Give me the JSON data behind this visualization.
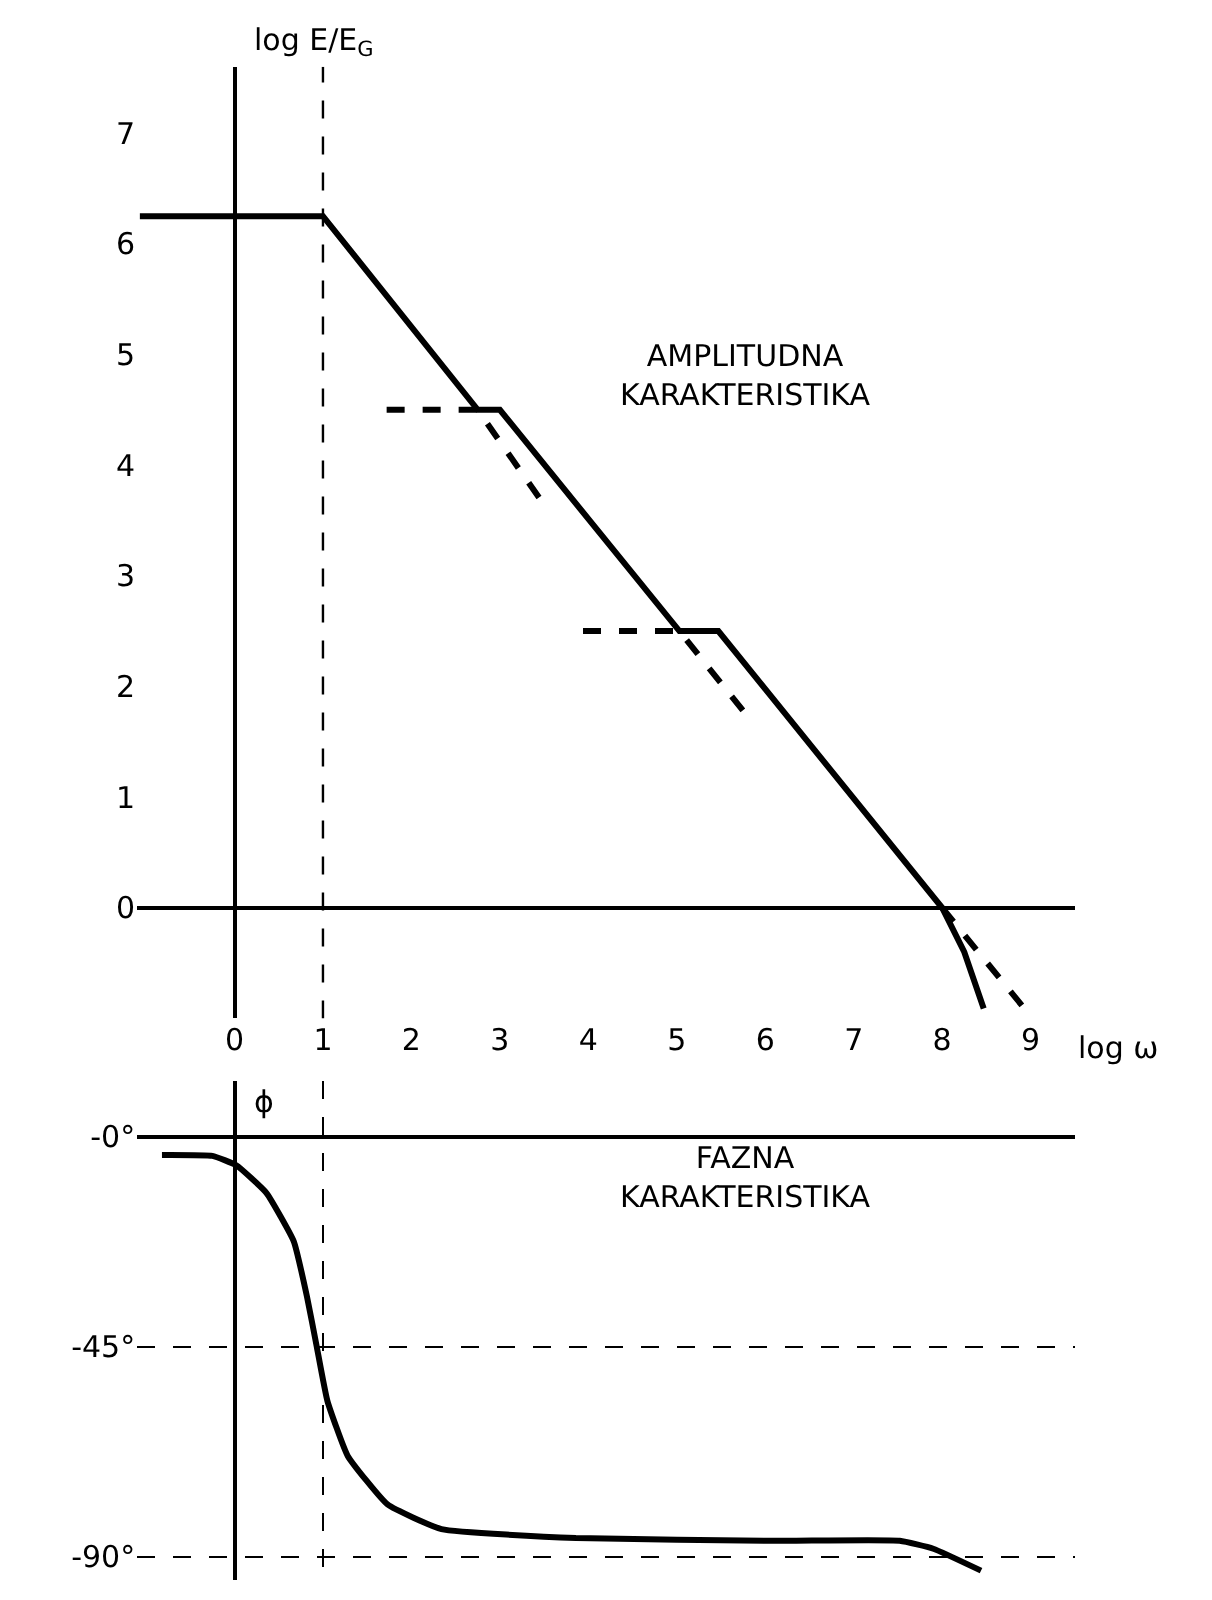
{
  "chart_data": [
    {
      "type": "line",
      "xlabel": "log ω",
      "ylabel": "log E/E$_{G}$",
      "xlim": [
        -1.1,
        9.5
      ],
      "ylim": [
        -1,
        7.6
      ],
      "xticks": [
        0,
        1,
        2,
        3,
        4,
        5,
        6,
        7,
        8,
        9
      ],
      "yticks": [
        0,
        1,
        2,
        3,
        4,
        5,
        6,
        7
      ],
      "marker": "none",
      "series": [
        {
          "color": "#000000",
          "line_style": "solid",
          "x": [
            -1.07,
            1,
            2.75,
            3,
            5.03,
            5.47,
            8,
            8.25,
            8.47
          ],
          "values": [
            6.25,
            6.25,
            4.5,
            4.5,
            2.5,
            2.5,
            0,
            -0.4,
            -0.91
          ]
        },
        {
          "color": "#000000",
          "line_style": "dashed",
          "x": [
            1.72,
            2.75,
            3.45
          ],
          "values": [
            4.5,
            4.5,
            3.7
          ]
        },
        {
          "color": "#000000",
          "line_style": "dashed",
          "x": [
            3.94,
            5.03,
            5.78
          ],
          "values": [
            2.5,
            2.5,
            1.75
          ]
        },
        {
          "color": "#000000",
          "line_style": "dashed",
          "x": [
            8,
            8.93
          ],
          "values": [
            0,
            -0.91
          ]
        }
      ],
      "ref_lines": [
        {
          "axis": "x",
          "value": 1,
          "label": null,
          "line_style": "dashed",
          "color": "#000000"
        }
      ],
      "annotations": [
        "AMPLITUDNA\nKARAKTERISTIKA"
      ]
    },
    {
      "type": "line",
      "ylabel": "ϕ",
      "xlim": [
        -1.1,
        9.5
      ],
      "ylim": [
        -95,
        12
      ],
      "xticks": [
        {
          "value": 1,
          "label": null
        }
      ],
      "yticks": [
        {
          "value": 0,
          "label": "-0°"
        },
        {
          "value": -45,
          "label": "-45°"
        },
        {
          "value": -90,
          "label": "-90°"
        }
      ],
      "tick_labels": "y",
      "marker": "none",
      "series": [
        {
          "color": "#000000",
          "line_style": "solid",
          "x": [
            -0.82,
            -0.25,
            0.02,
            0.36,
            0.67,
            0.82,
            0.93,
            1.05,
            1.28,
            1.73,
            2.34,
            3.86,
            6.15,
            7.52,
            7.9,
            8.44
          ],
          "values": [
            -3.9,
            -4.1,
            -6.1,
            -12,
            -22.4,
            -34.3,
            -45,
            -56.6,
            -68.4,
            -78.8,
            -84.1,
            -86,
            -86.6,
            -86.6,
            -88.3,
            -93
          ]
        }
      ],
      "grid": true,
      "annotations": [
        "FAZNA\nKARAKTERISTIKA"
      ]
    }
  ]
}
